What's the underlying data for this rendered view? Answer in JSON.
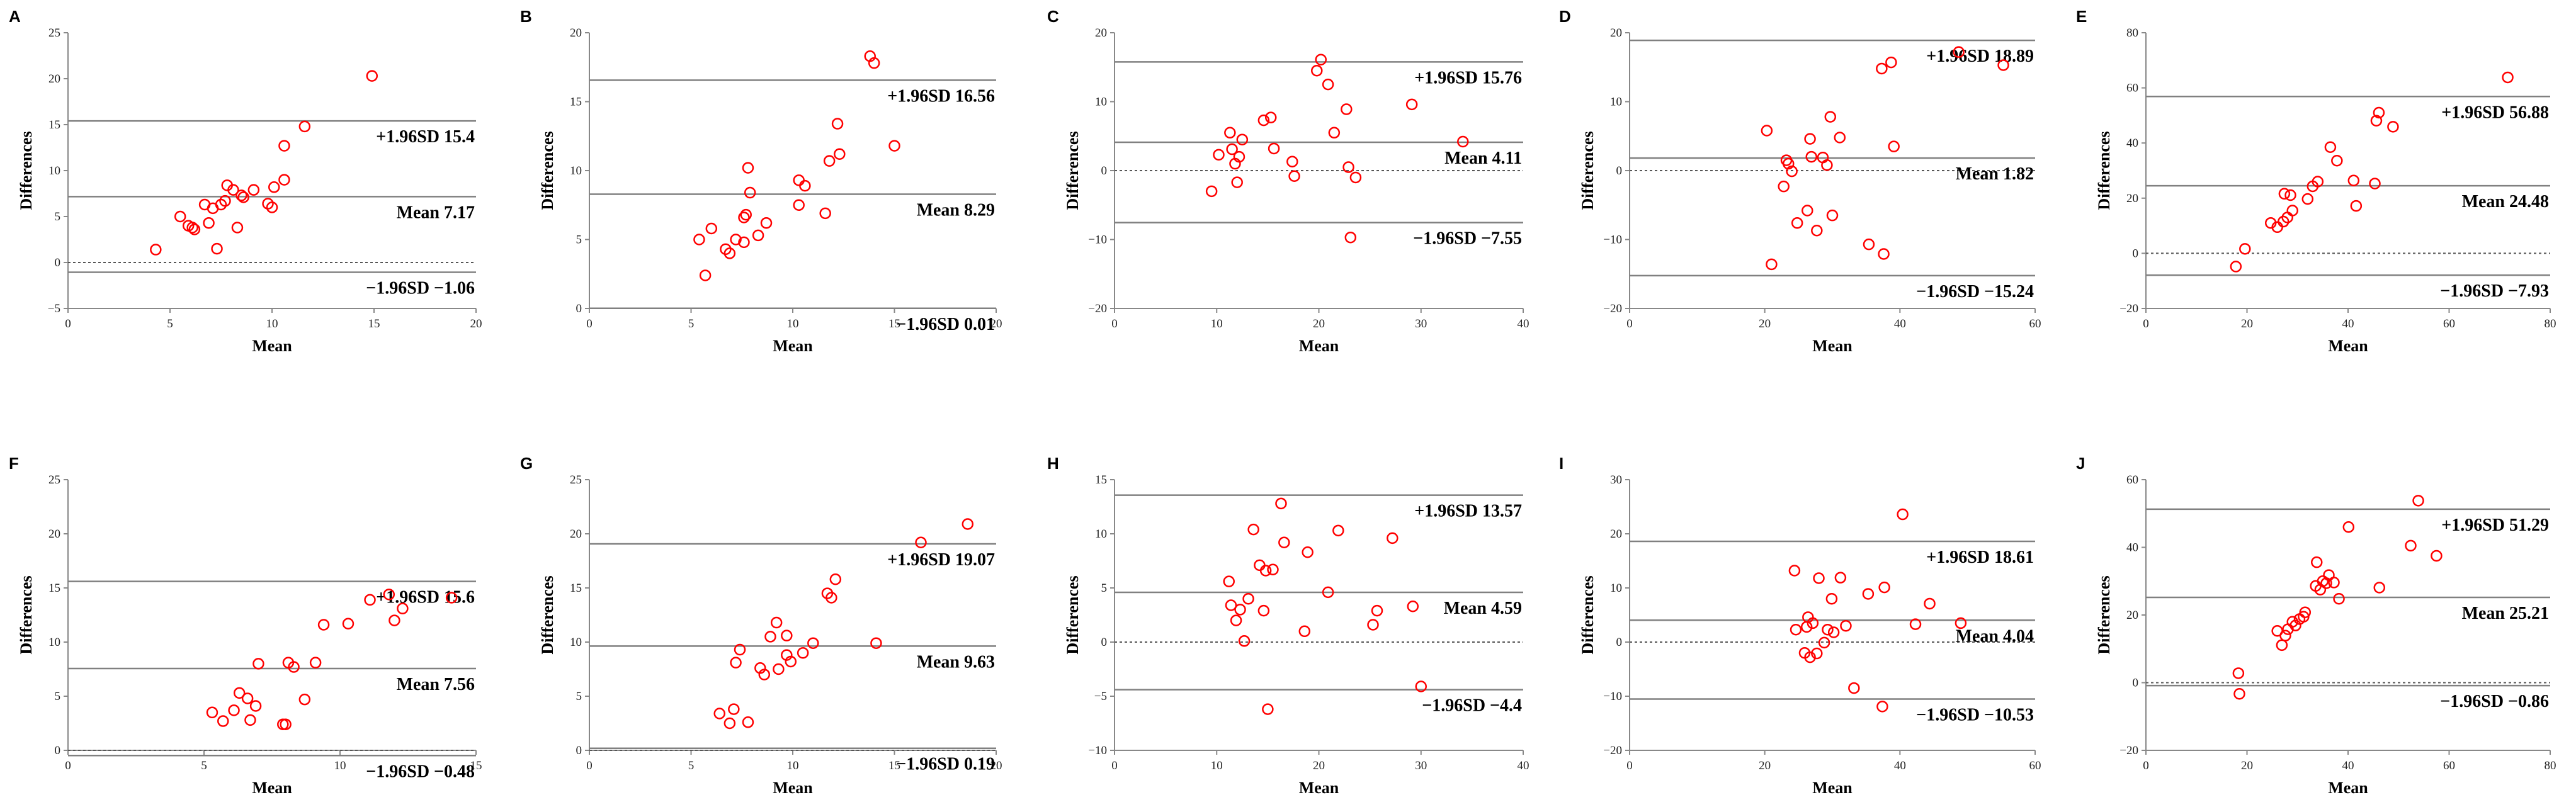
{
  "chart_data": [
    {
      "id": "A",
      "type": "scatter",
      "panel_label": "A",
      "xlabel": "Mean",
      "ylabel": "Differences",
      "xlim": [
        0,
        20
      ],
      "ylim": [
        -5,
        25
      ],
      "xticks": [
        0,
        5,
        10,
        15,
        20
      ],
      "yticks": [
        -5,
        0,
        5,
        10,
        15,
        20,
        25
      ],
      "mean": 7.17,
      "upper": 15.4,
      "lower": -1.06,
      "mean_label": "Mean 7.17",
      "upper_label": "+1.96SD 15.4",
      "lower_label": "−1.96SD −1.06",
      "points": [
        [
          4.3,
          1.4
        ],
        [
          5.5,
          5
        ],
        [
          5.9,
          4
        ],
        [
          6.1,
          3.8
        ],
        [
          6.2,
          3.6
        ],
        [
          6.7,
          6.3
        ],
        [
          6.9,
          4.3
        ],
        [
          7.1,
          5.9
        ],
        [
          7.3,
          1.5
        ],
        [
          7.5,
          6.3
        ],
        [
          7.7,
          6.7
        ],
        [
          7.8,
          8.4
        ],
        [
          8.1,
          7.9
        ],
        [
          8.3,
          3.8
        ],
        [
          8.5,
          7.3
        ],
        [
          8.6,
          7.1
        ],
        [
          9.1,
          7.9
        ],
        [
          9.8,
          6.4
        ],
        [
          10.0,
          6
        ],
        [
          10.1,
          8.2
        ],
        [
          10.6,
          12.7
        ],
        [
          10.6,
          9
        ],
        [
          11.6,
          14.8
        ],
        [
          14.9,
          20.3
        ]
      ]
    },
    {
      "id": "B",
      "type": "scatter",
      "panel_label": "B",
      "xlabel": "Mean",
      "ylabel": "Differences",
      "xlim": [
        0,
        20
      ],
      "ylim": [
        0,
        20
      ],
      "xticks": [
        0,
        5,
        10,
        15,
        20
      ],
      "yticks": [
        0,
        5,
        10,
        15,
        20
      ],
      "mean": 8.29,
      "upper": 16.56,
      "lower": 0.01,
      "mean_label": "Mean 8.29",
      "upper_label": "+1.96SD 16.56",
      "lower_label": "−1.96SD 0.01",
      "points": [
        [
          5.4,
          5
        ],
        [
          5.7,
          2.4
        ],
        [
          6.0,
          5.8
        ],
        [
          6.7,
          4.3
        ],
        [
          6.9,
          4
        ],
        [
          7.2,
          5
        ],
        [
          7.6,
          4.8
        ],
        [
          7.6,
          6.6
        ],
        [
          7.7,
          6.8
        ],
        [
          7.8,
          10.2
        ],
        [
          7.9,
          8.4
        ],
        [
          8.3,
          5.3
        ],
        [
          8.7,
          6.2
        ],
        [
          10.3,
          9.3
        ],
        [
          10.3,
          7.5
        ],
        [
          10.6,
          8.9
        ],
        [
          11.6,
          6.9
        ],
        [
          11.8,
          10.7
        ],
        [
          12.2,
          13.4
        ],
        [
          12.3,
          11.2
        ],
        [
          13.8,
          18.3
        ],
        [
          14.0,
          17.8
        ],
        [
          15.0,
          11.8
        ]
      ]
    },
    {
      "id": "C",
      "type": "scatter",
      "panel_label": "C",
      "xlabel": "Mean",
      "ylabel": "Differences",
      "xlim": [
        0,
        40
      ],
      "ylim": [
        -20,
        20
      ],
      "xticks": [
        0,
        10,
        20,
        30,
        40
      ],
      "yticks": [
        -20,
        -10,
        0,
        10,
        20
      ],
      "mean": 4.11,
      "upper": 15.76,
      "lower": -7.55,
      "mean_label": "Mean 4.11",
      "upper_label": "+1.96SD 15.76",
      "lower_label": "−1.96SD −7.55",
      "points": [
        [
          9.5,
          -3
        ],
        [
          10.2,
          2.3
        ],
        [
          11.3,
          5.5
        ],
        [
          11.5,
          3.1
        ],
        [
          11.8,
          1
        ],
        [
          12.0,
          -1.7
        ],
        [
          12.2,
          2
        ],
        [
          12.5,
          4.5
        ],
        [
          14.6,
          7.3
        ],
        [
          15.3,
          7.7
        ],
        [
          15.6,
          3.2
        ],
        [
          17.4,
          1.3
        ],
        [
          17.6,
          -0.8
        ],
        [
          19.8,
          14.5
        ],
        [
          20.2,
          16.1
        ],
        [
          20.9,
          12.5
        ],
        [
          21.5,
          5.5
        ],
        [
          22.7,
          8.9
        ],
        [
          22.9,
          0.5
        ],
        [
          23.1,
          -9.7
        ],
        [
          23.6,
          -1
        ],
        [
          29.1,
          9.6
        ],
        [
          34.1,
          4.2
        ]
      ]
    },
    {
      "id": "D",
      "type": "scatter",
      "panel_label": "D",
      "xlabel": "Mean",
      "ylabel": "Differences",
      "xlim": [
        0,
        60
      ],
      "ylim": [
        -20,
        20
      ],
      "xticks": [
        0,
        20,
        40,
        60
      ],
      "yticks": [
        -20,
        -10,
        0,
        10,
        20
      ],
      "mean": 1.82,
      "upper": 18.89,
      "lower": -15.24,
      "mean_label": "Mean 1.82",
      "upper_label": "+1.96SD 18.89",
      "lower_label": "−1.96SD −15.24",
      "points": [
        [
          20.3,
          5.8
        ],
        [
          21.0,
          -13.6
        ],
        [
          22.8,
          -2.3
        ],
        [
          23.2,
          1.5
        ],
        [
          23.5,
          1
        ],
        [
          24.0,
          -0.1
        ],
        [
          24.8,
          -7.6
        ],
        [
          26.3,
          -5.8
        ],
        [
          26.7,
          4.6
        ],
        [
          26.9,
          2
        ],
        [
          27.7,
          -8.7
        ],
        [
          28.6,
          1.9
        ],
        [
          29.2,
          0.8
        ],
        [
          29.7,
          7.8
        ],
        [
          30.0,
          -6.5
        ],
        [
          31.1,
          4.8
        ],
        [
          35.4,
          -10.7
        ],
        [
          37.3,
          14.8
        ],
        [
          37.6,
          -12.1
        ],
        [
          38.7,
          15.7
        ],
        [
          39.1,
          3.5
        ],
        [
          48.7,
          17.2
        ],
        [
          55.3,
          15.3
        ]
      ]
    },
    {
      "id": "E",
      "type": "scatter",
      "panel_label": "E",
      "xlabel": "Mean",
      "ylabel": "Differences",
      "xlim": [
        0,
        80
      ],
      "ylim": [
        -20,
        80
      ],
      "xticks": [
        0,
        20,
        40,
        60,
        80
      ],
      "yticks": [
        -20,
        0,
        20,
        40,
        60,
        80
      ],
      "mean": 24.48,
      "upper": 56.88,
      "lower": -7.93,
      "mean_label": "Mean 24.48",
      "upper_label": "+1.96SD 56.88",
      "lower_label": "−1.96SD −7.93",
      "points": [
        [
          17.8,
          -4.8
        ],
        [
          19.6,
          1.6
        ],
        [
          24.7,
          11
        ],
        [
          26.0,
          9.5
        ],
        [
          27.2,
          11.5
        ],
        [
          27.4,
          21.6
        ],
        [
          28.0,
          13
        ],
        [
          28.6,
          21.1
        ],
        [
          29.0,
          15.5
        ],
        [
          32.0,
          19.7
        ],
        [
          33.0,
          24.3
        ],
        [
          34.0,
          26
        ],
        [
          36.5,
          38.5
        ],
        [
          37.8,
          33.6
        ],
        [
          41.1,
          26.4
        ],
        [
          41.6,
          17.2
        ],
        [
          45.3,
          25.3
        ],
        [
          45.6,
          48.1
        ],
        [
          46.1,
          51
        ],
        [
          48.9,
          45.9
        ],
        [
          71.6,
          63.8
        ]
      ]
    },
    {
      "id": "F",
      "type": "scatter",
      "panel_label": "F",
      "xlabel": "Mean",
      "ylabel": "Differences",
      "xlim": [
        0,
        15
      ],
      "ylim": [
        0,
        25
      ],
      "xticks": [
        0,
        5,
        10,
        15
      ],
      "yticks": [
        0,
        5,
        10,
        15,
        20,
        25
      ],
      "mean": 7.56,
      "upper": 15.6,
      "lower": -0.48,
      "mean_label": "Mean 7.56",
      "upper_label": "+1.96SD 15.6",
      "lower_label": "−1.96SD −0.48",
      "points": [
        [
          5.3,
          3.5
        ],
        [
          5.7,
          2.7
        ],
        [
          6.1,
          3.7
        ],
        [
          6.3,
          5.3
        ],
        [
          6.7,
          2.8
        ],
        [
          6.6,
          4.8
        ],
        [
          6.9,
          4.1
        ],
        [
          7.0,
          8
        ],
        [
          7.9,
          2.4
        ],
        [
          8.0,
          2.4
        ],
        [
          8.1,
          8.1
        ],
        [
          8.3,
          7.7
        ],
        [
          8.7,
          4.7
        ],
        [
          9.1,
          8.1
        ],
        [
          9.4,
          11.6
        ],
        [
          10.3,
          11.7
        ],
        [
          11.1,
          13.9
        ],
        [
          11.8,
          14.4
        ],
        [
          12.0,
          12
        ],
        [
          12.3,
          13.1
        ],
        [
          14.1,
          14.1
        ]
      ]
    },
    {
      "id": "G",
      "type": "scatter",
      "panel_label": "G",
      "xlabel": "Mean",
      "ylabel": "Differences",
      "xlim": [
        0,
        20
      ],
      "ylim": [
        0,
        25
      ],
      "xticks": [
        0,
        5,
        10,
        15,
        20
      ],
      "yticks": [
        0,
        5,
        10,
        15,
        20,
        25
      ],
      "mean": 9.63,
      "upper": 19.07,
      "lower": 0.19,
      "mean_label": "Mean 9.63",
      "upper_label": "+1.96SD 19.07",
      "lower_label": "−1.96SD 0.19",
      "points": [
        [
          6.4,
          3.4
        ],
        [
          6.9,
          2.5
        ],
        [
          7.1,
          3.8
        ],
        [
          7.2,
          8.1
        ],
        [
          7.4,
          9.3
        ],
        [
          7.8,
          2.6
        ],
        [
          8.4,
          7.6
        ],
        [
          8.6,
          7
        ],
        [
          8.9,
          10.5
        ],
        [
          9.2,
          11.8
        ],
        [
          9.3,
          7.5
        ],
        [
          9.7,
          10.6
        ],
        [
          9.7,
          8.8
        ],
        [
          9.9,
          8.2
        ],
        [
          10.5,
          9
        ],
        [
          11.0,
          9.9
        ],
        [
          11.7,
          14.5
        ],
        [
          11.9,
          14.1
        ],
        [
          12.1,
          15.8
        ],
        [
          14.1,
          9.9
        ],
        [
          16.3,
          19.2
        ],
        [
          18.6,
          20.9
        ]
      ]
    },
    {
      "id": "H",
      "type": "scatter",
      "panel_label": "H",
      "xlabel": "Mean",
      "ylabel": "Differences",
      "xlim": [
        0,
        40
      ],
      "ylim": [
        -10,
        15
      ],
      "xticks": [
        0,
        10,
        20,
        30,
        40
      ],
      "yticks": [
        -10,
        -5,
        0,
        5,
        10,
        15
      ],
      "mean": 4.59,
      "upper": 13.57,
      "lower": -4.4,
      "mean_label": "Mean 4.59",
      "upper_label": "+1.96SD 13.57",
      "lower_label": "−1.96SD −4.4",
      "points": [
        [
          11.2,
          5.6
        ],
        [
          11.4,
          3.4
        ],
        [
          11.9,
          2
        ],
        [
          12.3,
          3
        ],
        [
          12.7,
          0.1
        ],
        [
          13.1,
          4
        ],
        [
          13.6,
          10.4
        ],
        [
          14.2,
          7.1
        ],
        [
          14.6,
          2.9
        ],
        [
          14.8,
          6.6
        ],
        [
          15.0,
          -6.2
        ],
        [
          15.5,
          6.7
        ],
        [
          16.3,
          12.8
        ],
        [
          16.6,
          9.2
        ],
        [
          18.6,
          1
        ],
        [
          18.9,
          8.3
        ],
        [
          20.9,
          4.6
        ],
        [
          21.9,
          10.3
        ],
        [
          25.3,
          1.6
        ],
        [
          25.7,
          2.9
        ],
        [
          27.2,
          9.6
        ],
        [
          29.2,
          3.3
        ],
        [
          30.0,
          -4.1
        ]
      ]
    },
    {
      "id": "I",
      "type": "scatter",
      "panel_label": "I",
      "xlabel": "Mean",
      "ylabel": "Differences",
      "xlim": [
        0,
        60
      ],
      "ylim": [
        -20,
        30
      ],
      "xticks": [
        0,
        20,
        40,
        60
      ],
      "yticks": [
        -20,
        -10,
        0,
        10,
        20,
        30
      ],
      "mean": 4.04,
      "upper": 18.61,
      "lower": -10.53,
      "mean_label": "Mean 4.04",
      "upper_label": "+1.96SD 18.61",
      "lower_label": "−1.96SD −10.53",
      "points": [
        [
          24.4,
          13.2
        ],
        [
          24.6,
          2.3
        ],
        [
          25.9,
          -2
        ],
        [
          26.2,
          2.8
        ],
        [
          26.4,
          4.6
        ],
        [
          26.7,
          -2.8
        ],
        [
          27.1,
          3.5
        ],
        [
          27.7,
          -2.1
        ],
        [
          28.0,
          11.8
        ],
        [
          28.8,
          -0.1
        ],
        [
          29.3,
          2.3
        ],
        [
          29.9,
          8
        ],
        [
          30.2,
          1.8
        ],
        [
          31.2,
          11.9
        ],
        [
          32.0,
          3
        ],
        [
          33.2,
          -8.5
        ],
        [
          35.3,
          8.9
        ],
        [
          37.4,
          -11.9
        ],
        [
          37.7,
          10.1
        ],
        [
          40.4,
          23.6
        ],
        [
          42.3,
          3.3
        ],
        [
          44.4,
          7.1
        ],
        [
          49.0,
          3.5
        ]
      ]
    },
    {
      "id": "J",
      "type": "scatter",
      "panel_label": "J",
      "xlabel": "Mean",
      "ylabel": "Differences",
      "xlim": [
        0,
        80
      ],
      "ylim": [
        -20,
        60
      ],
      "xticks": [
        0,
        20,
        40,
        60,
        80
      ],
      "yticks": [
        -20,
        0,
        20,
        40,
        60
      ],
      "mean": 25.21,
      "upper": 51.29,
      "lower": -0.86,
      "mean_label": "Mean 25.21",
      "upper_label": "+1.96SD 51.29",
      "lower_label": "−1.96SD −0.86",
      "points": [
        [
          18.3,
          2.8
        ],
        [
          18.5,
          -3.3
        ],
        [
          26.0,
          15.3
        ],
        [
          26.9,
          11.1
        ],
        [
          27.6,
          13.9
        ],
        [
          28.1,
          15.8
        ],
        [
          29.0,
          18
        ],
        [
          29.6,
          16.9
        ],
        [
          30.4,
          18.8
        ],
        [
          31.5,
          20.8
        ],
        [
          31.2,
          19.5
        ],
        [
          33.6,
          28.6
        ],
        [
          33.8,
          35.6
        ],
        [
          34.5,
          27.5
        ],
        [
          35.0,
          30
        ],
        [
          35.7,
          29.4
        ],
        [
          36.2,
          31.8
        ],
        [
          37.2,
          29.6
        ],
        [
          38.2,
          24.8
        ],
        [
          40.1,
          46
        ],
        [
          46.2,
          28.1
        ],
        [
          53.9,
          53.8
        ],
        [
          52.4,
          40.5
        ],
        [
          57.5,
          37.5
        ]
      ]
    }
  ]
}
